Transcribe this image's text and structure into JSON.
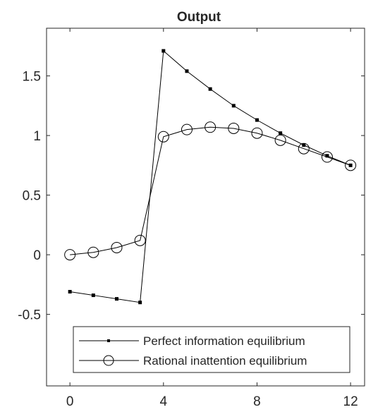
{
  "chart_data": {
    "type": "line",
    "title": "Output",
    "xlabel": "",
    "ylabel": "",
    "xlim": [
      -1,
      12.6
    ],
    "ylim": [
      -1.1,
      1.9
    ],
    "xticks": [
      0,
      4,
      8,
      12
    ],
    "yticks": [
      -0.5,
      0,
      0.5,
      1,
      1.5
    ],
    "x_tick_labels": [
      "0",
      "4",
      "8",
      "12"
    ],
    "y_tick_labels": [
      "-0.5",
      "0",
      "0.5",
      "1",
      "1.5"
    ],
    "grid": false,
    "legend_position": "lower-right",
    "x": [
      0,
      1,
      2,
      3,
      4,
      5,
      6,
      7,
      8,
      9,
      10,
      11,
      12
    ],
    "series": [
      {
        "name": "Perfect information equilibrium",
        "marker": "filled-square",
        "color": "#000000",
        "values": [
          -0.31,
          -0.34,
          -0.37,
          -0.4,
          1.71,
          1.54,
          1.39,
          1.25,
          1.13,
          1.02,
          0.92,
          0.83,
          0.75
        ]
      },
      {
        "name": "Rational inattention equilibrium",
        "marker": "open-circle",
        "color": "#000000",
        "values": [
          0.0,
          0.02,
          0.06,
          0.12,
          0.99,
          1.05,
          1.07,
          1.06,
          1.02,
          0.96,
          0.89,
          0.82,
          0.75
        ]
      }
    ]
  }
}
